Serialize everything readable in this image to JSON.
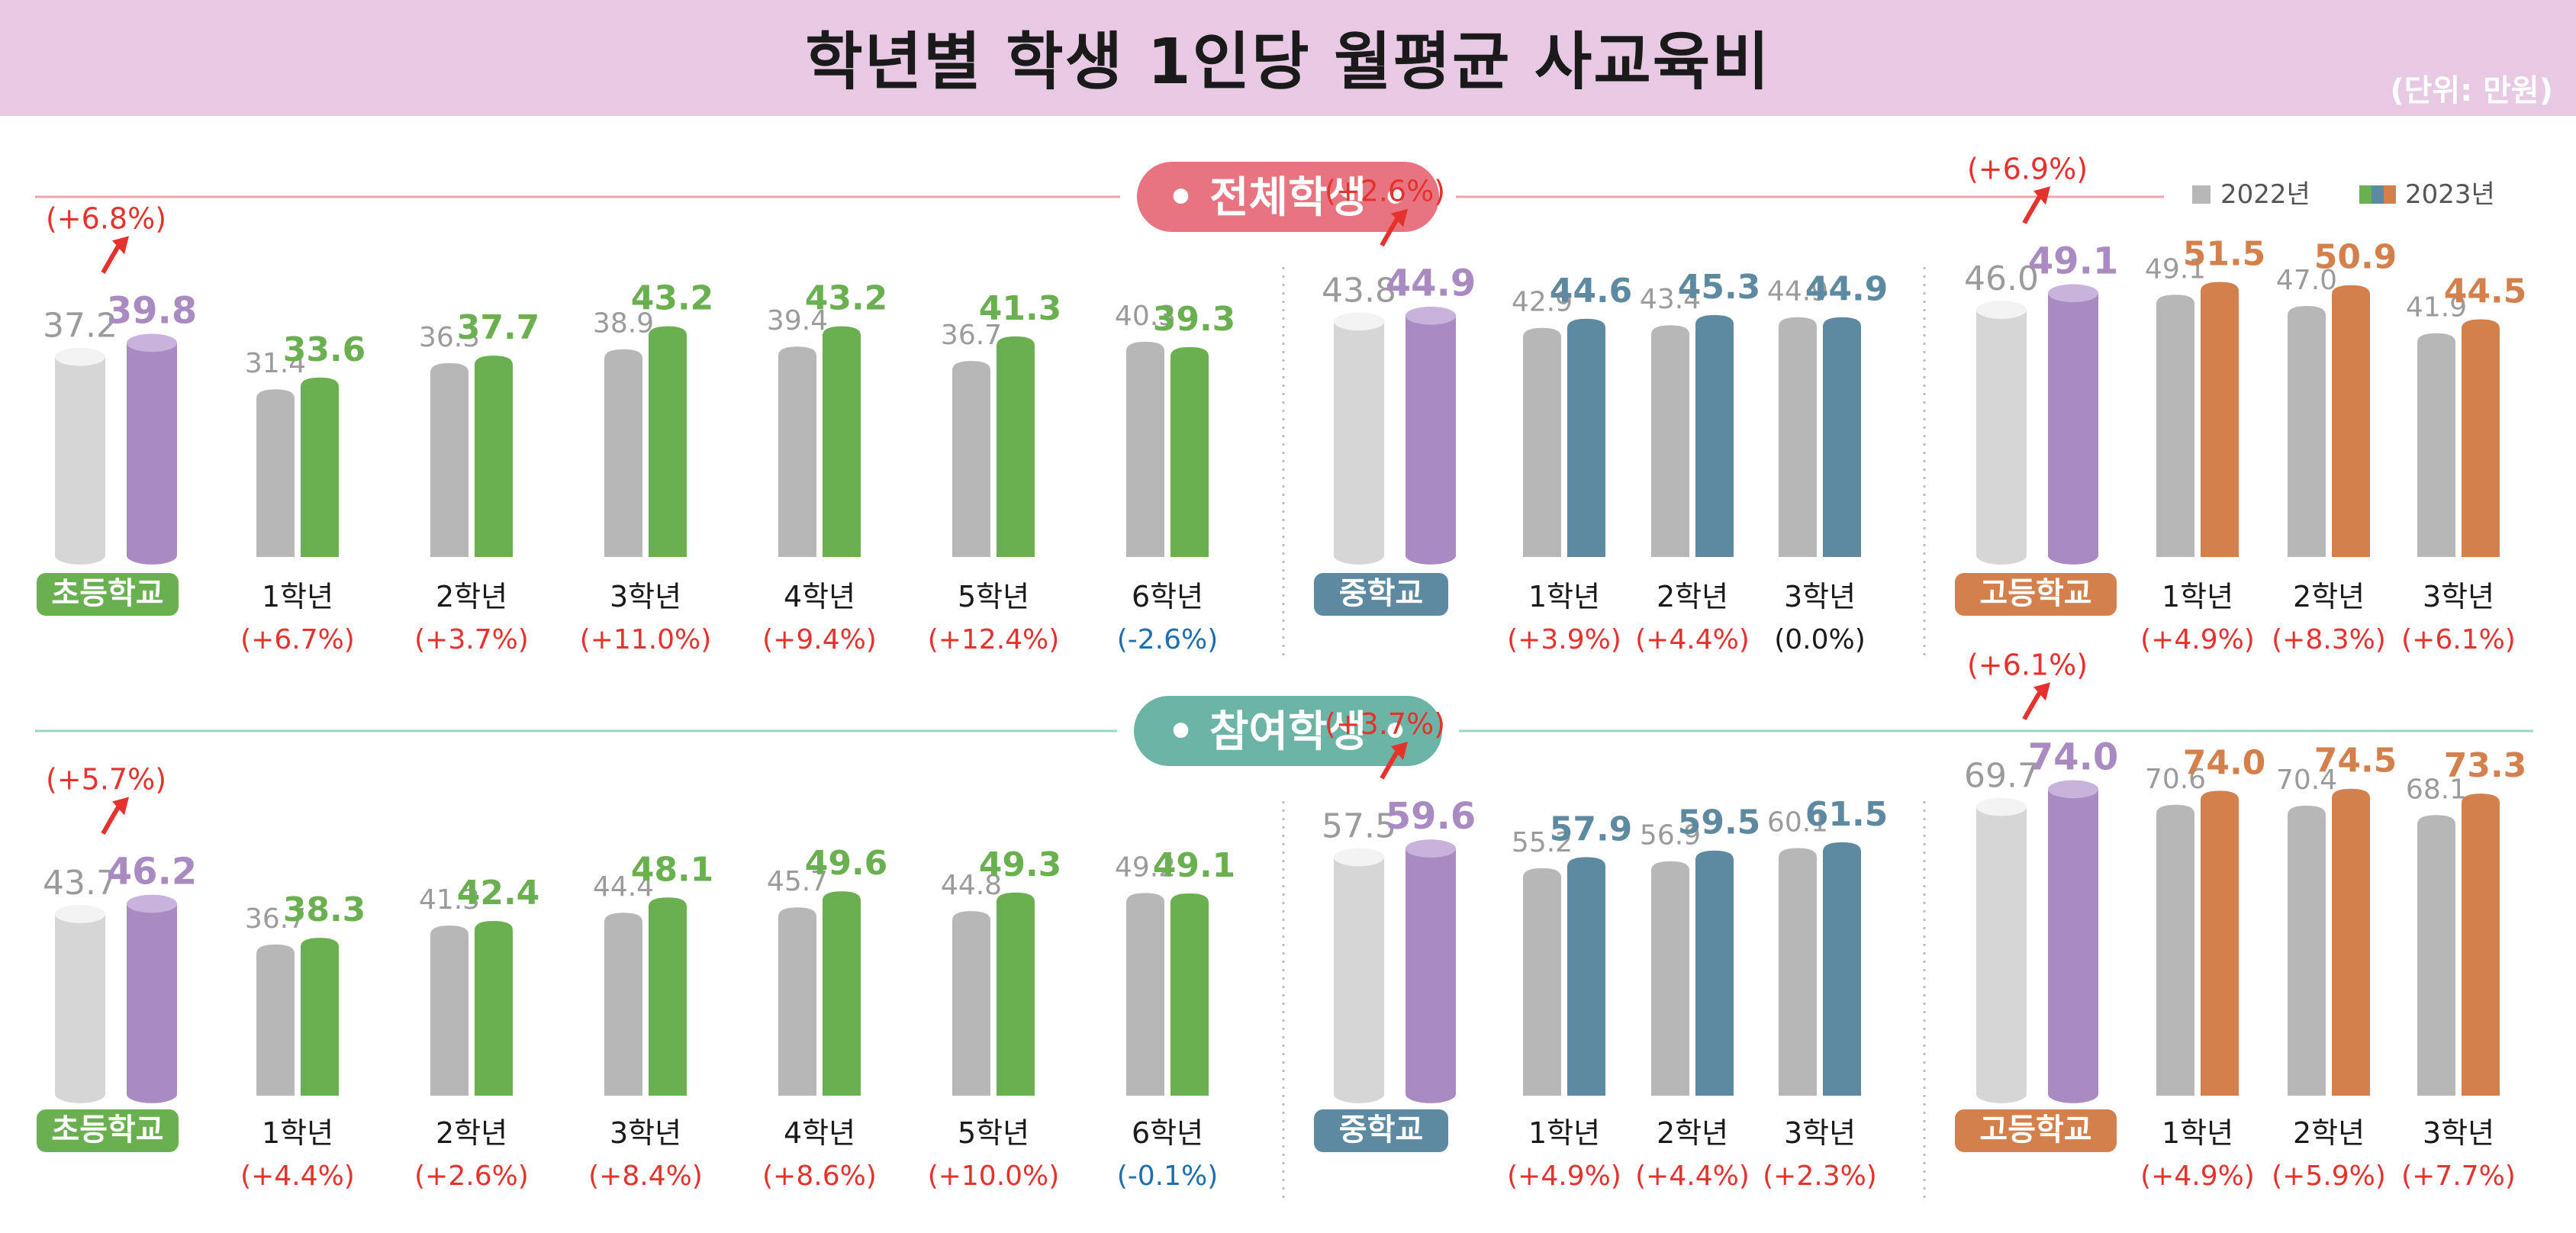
{
  "title": "학년별 학생 1인당 월평균 사교육비",
  "unit": "(단위: 만원)",
  "legend": {
    "y2022": "2022년",
    "y2023": "2023년"
  },
  "colors": {
    "gray": "#b7b7b7",
    "grayDisc": "#cfcfcf",
    "green": "#6aaf50",
    "blue": "#5d8aa0",
    "orange": "#d4804d",
    "purple": "#a98bc2",
    "label2022": "#9b9b9b",
    "badgeElem": "#6aaf50",
    "badgeMid": "#5d8aa0",
    "badgeHigh": "#d4804d",
    "sec1Pill": "#e77480",
    "sec1Line": "#f0a4aa",
    "sec2Pill": "#6bb4a6",
    "sec2Line": "#9ed2c8",
    "pct": "#e5322d",
    "pctNeg": "#1e6fb0",
    "pctZero": "#1a1a1a"
  },
  "chart_data": {
    "type": "bar",
    "title": "학년별 학생 1인당 월평균 사교육비",
    "unit": "만원",
    "series_names": [
      "2022년",
      "2023년"
    ],
    "sections": [
      {
        "title": "• 전체학생 •",
        "groups": [
          {
            "school": "초등학교",
            "color": "green",
            "summary": {
              "v2022": 37.2,
              "v2023": 39.8,
              "change": "(+6.8%)"
            },
            "categories": [
              {
                "label": "1학년",
                "v2022": 31.4,
                "v2023": 33.6,
                "change": "(+6.7%)"
              },
              {
                "label": "2학년",
                "v2022": 36.3,
                "v2023": 37.7,
                "change": "(+3.7%)"
              },
              {
                "label": "3학년",
                "v2022": 38.9,
                "v2023": 43.2,
                "change": "(+11.0%)"
              },
              {
                "label": "4학년",
                "v2022": 39.4,
                "v2023": 43.2,
                "change": "(+9.4%)"
              },
              {
                "label": "5학년",
                "v2022": 36.7,
                "v2023": 41.3,
                "change": "(+12.4%)"
              },
              {
                "label": "6학년",
                "v2022": 40.3,
                "v2023": 39.3,
                "change": "(-2.6%)"
              }
            ]
          },
          {
            "school": "중학교",
            "color": "blue",
            "summary": {
              "v2022": 43.8,
              "v2023": 44.9,
              "change": "(+2.6%)"
            },
            "categories": [
              {
                "label": "1학년",
                "v2022": 42.9,
                "v2023": 44.6,
                "change": "(+3.9%)"
              },
              {
                "label": "2학년",
                "v2022": 43.4,
                "v2023": 45.3,
                "change": "(+4.4%)"
              },
              {
                "label": "3학년",
                "v2022": 44.9,
                "v2023": 44.9,
                "change": "(0.0%)"
              }
            ]
          },
          {
            "school": "고등학교",
            "color": "orange",
            "summary": {
              "v2022": 46.0,
              "v2023": 49.1,
              "change": "(+6.9%)"
            },
            "categories": [
              {
                "label": "1학년",
                "v2022": 49.1,
                "v2023": 51.5,
                "change": "(+4.9%)"
              },
              {
                "label": "2학년",
                "v2022": 47.0,
                "v2023": 50.9,
                "change": "(+8.3%)"
              },
              {
                "label": "3학년",
                "v2022": 41.9,
                "v2023": 44.5,
                "change": "(+6.1%)"
              }
            ]
          }
        ]
      },
      {
        "title": "• 참여학생 •",
        "groups": [
          {
            "school": "초등학교",
            "color": "green",
            "summary": {
              "v2022": 43.7,
              "v2023": 46.2,
              "change": "(+5.7%)"
            },
            "categories": [
              {
                "label": "1학년",
                "v2022": 36.7,
                "v2023": 38.3,
                "change": "(+4.4%)"
              },
              {
                "label": "2학년",
                "v2022": 41.3,
                "v2023": 42.4,
                "change": "(+2.6%)"
              },
              {
                "label": "3학년",
                "v2022": 44.4,
                "v2023": 48.1,
                "change": "(+8.4%)"
              },
              {
                "label": "4학년",
                "v2022": 45.7,
                "v2023": 49.6,
                "change": "(+8.6%)"
              },
              {
                "label": "5학년",
                "v2022": 44.8,
                "v2023": 49.3,
                "change": "(+10.0%)"
              },
              {
                "label": "6학년",
                "v2022": 49.2,
                "v2023": 49.1,
                "change": "(-0.1%)"
              }
            ]
          },
          {
            "school": "중학교",
            "color": "blue",
            "summary": {
              "v2022": 57.5,
              "v2023": 59.6,
              "change": "(+3.7%)"
            },
            "categories": [
              {
                "label": "1학년",
                "v2022": 55.2,
                "v2023": 57.9,
                "change": "(+4.9%)"
              },
              {
                "label": "2학년",
                "v2022": 56.9,
                "v2023": 59.5,
                "change": "(+4.4%)"
              },
              {
                "label": "3학년",
                "v2022": 60.1,
                "v2023": 61.5,
                "change": "(+2.3%)"
              }
            ]
          },
          {
            "school": "고등학교",
            "color": "orange",
            "summary": {
              "v2022": 69.7,
              "v2023": 74.0,
              "change": "(+6.1%)"
            },
            "categories": [
              {
                "label": "1학년",
                "v2022": 70.6,
                "v2023": 74.0,
                "change": "(+4.9%)"
              },
              {
                "label": "2학년",
                "v2022": 70.4,
                "v2023": 74.5,
                "change": "(+5.9%)"
              },
              {
                "label": "3학년",
                "v2022": 68.1,
                "v2023": 73.3,
                "change": "(+7.7%)"
              }
            ]
          }
        ]
      }
    ]
  }
}
